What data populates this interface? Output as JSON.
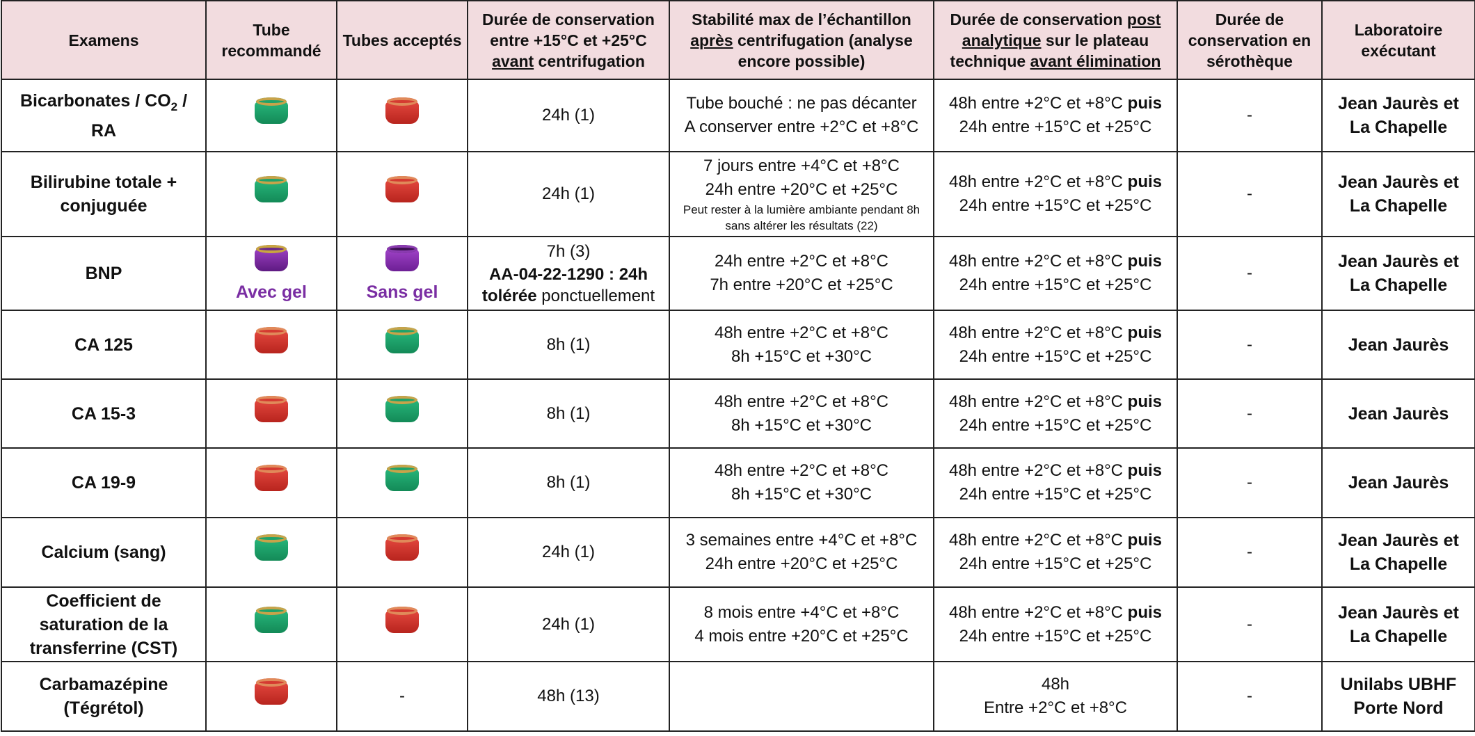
{
  "headers": {
    "examens": "Examens",
    "tube_recommande": "Tube recommandé",
    "tubes_acceptes": "Tubes acceptés",
    "duree_avant_1": "Durée de conservation entre +15°C et +25°C ",
    "duree_avant_u": "avant",
    "duree_avant_2": " centrifugation",
    "stab_1": "Stabilité max de l’échantillon ",
    "stab_u": "après",
    "stab_2": " centrifugation (analyse encore possible)",
    "post_1": "Durée de conservation ",
    "post_u1": "post analytique",
    "post_2": " sur le plateau technique ",
    "post_u2": "avant élimination",
    "sero": "Durée de conservation en sérothèque",
    "labo": "Laboratoire exécutant"
  },
  "colors": {
    "header_bg": "#f2dcdf",
    "gel_text": "#7a2ea3"
  },
  "rows": [
    {
      "exam_a": "Bicarbonates / CO",
      "exam_sub": "2",
      "exam_b": " / RA",
      "tube_rec": "green-tube-icon",
      "tube_acc": "red-tube-icon",
      "avant": "24h (1)",
      "stab_l1": "Tube bouché : ne pas décanter",
      "stab_l2": "A conserver entre +2°C et +8°C",
      "post_l1": "48h entre +2°C et +8°C ",
      "post_b": "puis",
      "post_l2": "24h entre +15°C et +25°C",
      "sero": "-",
      "labo": "Jean Jaurès et La Chapelle"
    },
    {
      "exam": "Bilirubine totale + conjuguée",
      "tube_rec": "green-tube-icon",
      "tube_acc": "red-tube-icon",
      "avant": "24h (1)",
      "stab_l1": "7 jours entre +4°C et +8°C",
      "stab_l2": "24h entre +20°C et +25°C",
      "stab_note": "Peut rester à la lumière ambiante pendant 8h sans altérer les résultats (22)",
      "post_l1": "48h entre +2°C et +8°C ",
      "post_b": "puis",
      "post_l2": "24h entre +15°C et +25°C",
      "sero": "-",
      "labo": "Jean Jaurès et La Chapelle"
    },
    {
      "exam": "BNP",
      "tube_rec": "purple-gel-tube-icon",
      "tube_rec_label": "Avec gel",
      "tube_acc": "purple-tube-icon",
      "tube_acc_label": "Sans gel",
      "avant_l1": "7h (3)",
      "avant_b": "AA-04-22-1290 : 24h tolérée",
      "avant_tail": " ponctuellement",
      "stab_l1": "24h entre +2°C et +8°C",
      "stab_l2": "7h entre +20°C et +25°C",
      "post_l1": "48h entre +2°C et +8°C ",
      "post_b": "puis",
      "post_l2": "24h entre +15°C et +25°C",
      "sero": "-",
      "labo": "Jean Jaurès et La Chapelle"
    },
    {
      "exam": "CA 125",
      "tube_rec": "red-tube-icon",
      "tube_acc": "green-tube-icon",
      "avant": "8h (1)",
      "stab_l1": "48h entre +2°C et +8°C",
      "stab_l2": "8h +15°C et +30°C",
      "post_l1": "48h entre +2°C et +8°C ",
      "post_b": "puis",
      "post_l2": "24h entre +15°C et +25°C",
      "sero": "-",
      "labo": "Jean Jaurès"
    },
    {
      "exam": "CA 15-3",
      "tube_rec": "red-tube-icon",
      "tube_acc": "green-tube-icon",
      "avant": "8h (1)",
      "stab_l1": "48h entre +2°C et +8°C",
      "stab_l2": "8h +15°C et +30°C",
      "post_l1": "48h entre +2°C et +8°C ",
      "post_b": "puis",
      "post_l2": "24h entre +15°C et +25°C",
      "sero": "-",
      "labo": "Jean Jaurès"
    },
    {
      "exam": "CA 19-9",
      "tube_rec": "red-tube-icon",
      "tube_acc": "green-tube-icon",
      "avant": "8h (1)",
      "stab_l1": "48h entre +2°C et +8°C",
      "stab_l2": "8h +15°C et +30°C",
      "post_l1": "48h entre +2°C et +8°C ",
      "post_b": "puis",
      "post_l2": "24h entre +15°C et +25°C",
      "sero": "-",
      "labo": "Jean Jaurès"
    },
    {
      "exam": "Calcium (sang)",
      "tube_rec": "green-tube-icon",
      "tube_acc": "red-tube-icon",
      "avant": "24h (1)",
      "stab_l1": "3 semaines entre +4°C et +8°C",
      "stab_l2": "24h entre +20°C et +25°C",
      "post_l1": "48h entre +2°C et +8°C ",
      "post_b": "puis",
      "post_l2": "24h entre +15°C et +25°C",
      "sero": "-",
      "labo": "Jean Jaurès et La Chapelle"
    },
    {
      "exam": "Coefficient de saturation de la transferrine (CST)",
      "tube_rec": "green-tube-icon",
      "tube_acc": "red-tube-icon",
      "avant": "24h (1)",
      "stab_l1": "8 mois entre +4°C et +8°C",
      "stab_l2": "4 mois entre +20°C et +25°C",
      "post_l1": "48h entre +2°C et +8°C ",
      "post_b": "puis",
      "post_l2": "24h entre +15°C et +25°C",
      "sero": "-",
      "labo": "Jean Jaurès et La Chapelle"
    },
    {
      "exam": "Carbamazépine (Tégrétol)",
      "tube_rec": "red-tube-icon",
      "tube_acc_text": "-",
      "avant": "48h (13)",
      "stab_l1": "",
      "post_line1": "48h",
      "post_line2": "Entre +2°C et +8°C",
      "sero": "-",
      "labo": "Unilabs UBHF Porte Nord"
    }
  ]
}
